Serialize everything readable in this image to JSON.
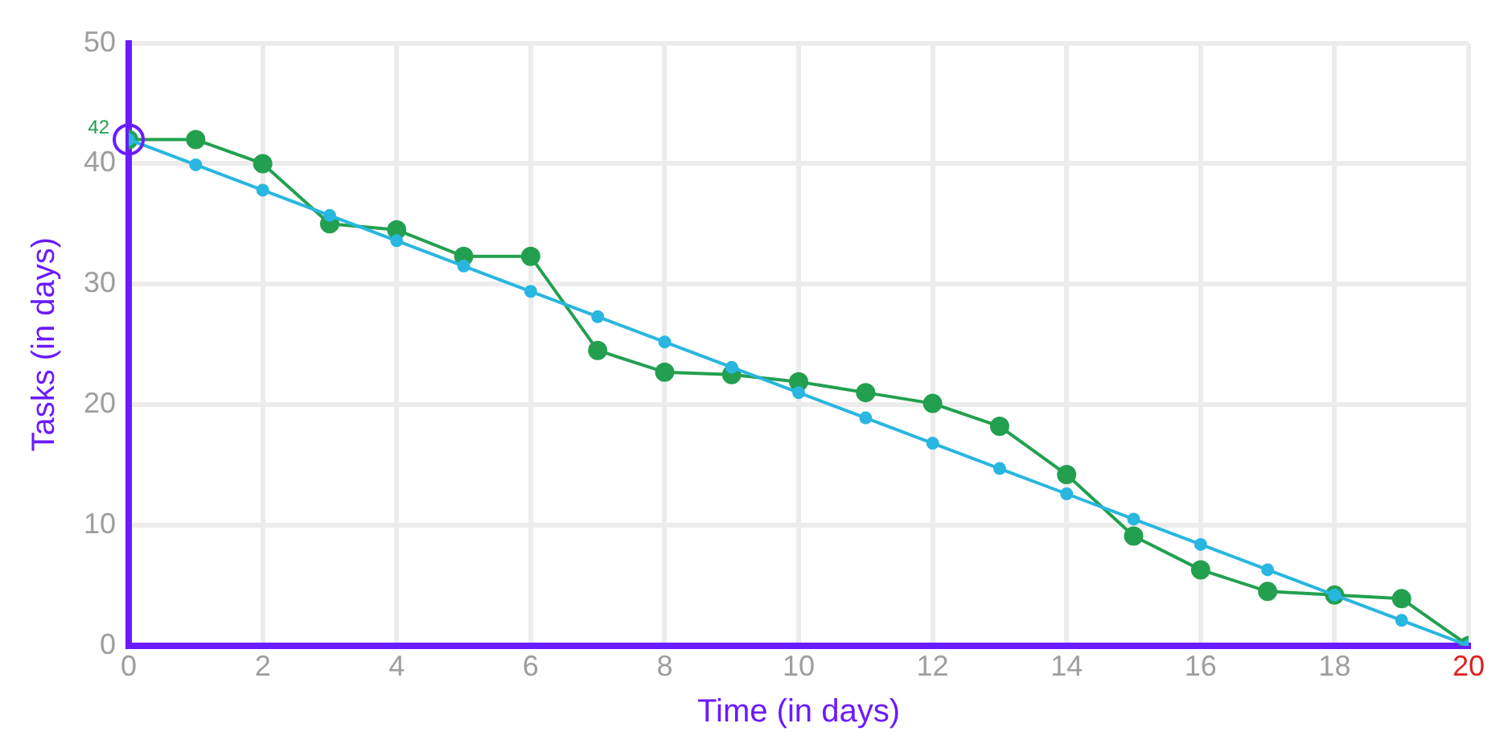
{
  "chart_data": {
    "type": "line",
    "xlabel": "Time (in days)",
    "ylabel": "Tasks (in days)",
    "x": [
      0,
      1,
      2,
      3,
      4,
      5,
      6,
      7,
      8,
      9,
      10,
      11,
      12,
      13,
      14,
      15,
      16,
      17,
      18,
      19,
      20
    ],
    "series": [
      {
        "color": "#29b6e0",
        "values": [
          42,
          39.9,
          37.8,
          35.7,
          33.6,
          31.5,
          29.4,
          27.3,
          25.2,
          23.1,
          21,
          18.9,
          16.8,
          14.7,
          12.6,
          10.5,
          8.4,
          6.3,
          4.2,
          2.1,
          0
        ]
      },
      {
        "color": "#22a050",
        "values": [
          42,
          42,
          40,
          35,
          34.5,
          32.3,
          32.3,
          24.5,
          22.7,
          22.5,
          21.9,
          21,
          20.1,
          18.2,
          14.2,
          9.1,
          6.3,
          4.5,
          4.2,
          3.9,
          0
        ]
      }
    ],
    "xlim": [
      0,
      20
    ],
    "xticks": [
      0,
      2,
      4,
      6,
      8,
      10,
      12,
      14,
      16,
      18,
      20
    ],
    "ylim": [
      0,
      50
    ],
    "yticks": [
      0,
      10,
      20,
      30,
      40,
      50
    ],
    "annotations": [
      {
        "text": "42",
        "x": 0,
        "y": 42
      }
    ],
    "grid": true,
    "legend": false,
    "marker": "circle",
    "line_style": "solid"
  }
}
